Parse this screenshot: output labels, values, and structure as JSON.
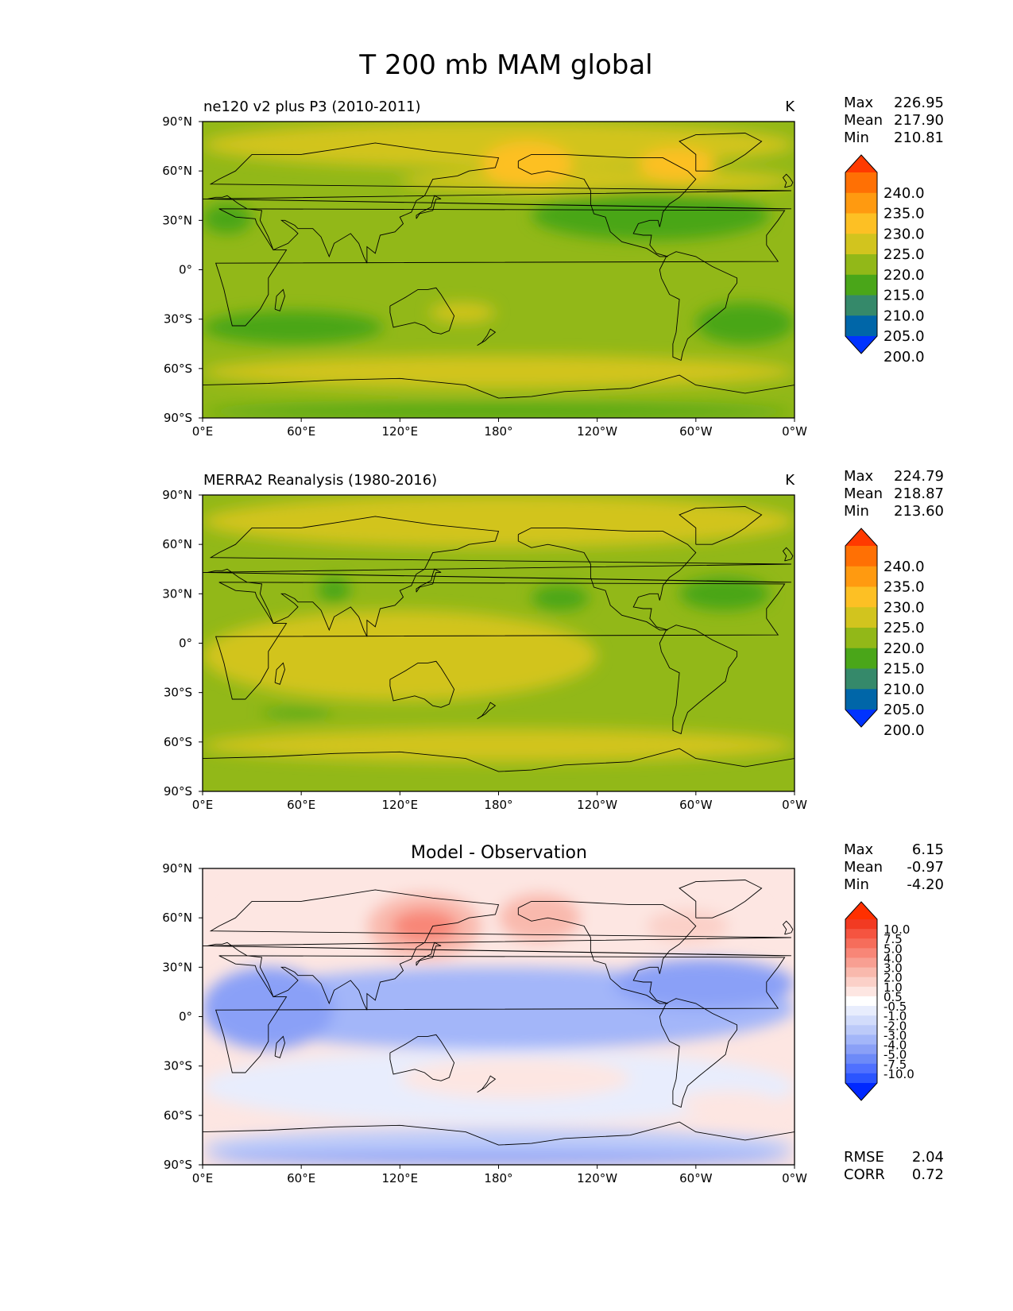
{
  "figure": {
    "title": "T 200 mb MAM global"
  },
  "colors": {
    "abs": [
      "#0033ff",
      "#0066a8",
      "#35896a",
      "#4aa619",
      "#92b818",
      "#d2c41e",
      "#fdc024",
      "#ff9a10",
      "#ff7004",
      "#ff3a00"
    ],
    "diff": [
      "#0028ff",
      "#2b55ff",
      "#4f70ff",
      "#6d8af8",
      "#8aa0f7",
      "#a3b6f9",
      "#bccaf9",
      "#d2dcfb",
      "#e8edfd",
      "#ffffff",
      "#fde6e2",
      "#fbd0c8",
      "#f9b9ad",
      "#f89f92",
      "#f88677",
      "#f66d5b",
      "#f55440",
      "#f23a22",
      "#ff3000"
    ],
    "land": "#000000"
  },
  "axes": {
    "xticks": [
      "0°E",
      "60°E",
      "120°E",
      "180°",
      "120°W",
      "60°W",
      "0°W"
    ],
    "yticks": [
      "90°N",
      "60°N",
      "30°N",
      "0°",
      "30°S",
      "60°S",
      "90°S"
    ]
  },
  "panels": [
    {
      "title_left": "ne120 v2 plus P3 (2010-2011)",
      "title_center": "",
      "units": "K",
      "stats": [
        {
          "label": "Max",
          "value": "226.95"
        },
        {
          "label": "Mean",
          "value": "217.90"
        },
        {
          "label": "Min",
          "value": "210.81"
        }
      ],
      "colorbar_labels": [
        "240.0",
        "235.0",
        "230.0",
        "225.0",
        "220.0",
        "215.0",
        "210.0",
        "205.0",
        "200.0"
      ],
      "extra_stats": []
    },
    {
      "title_left": "MERRA2 Reanalysis (1980-2016)",
      "title_center": "",
      "units": "K",
      "stats": [
        {
          "label": "Max",
          "value": "224.79"
        },
        {
          "label": "Mean",
          "value": "218.87"
        },
        {
          "label": "Min",
          "value": "213.60"
        }
      ],
      "colorbar_labels": [
        "240.0",
        "235.0",
        "230.0",
        "225.0",
        "220.0",
        "215.0",
        "210.0",
        "205.0",
        "200.0"
      ],
      "extra_stats": []
    },
    {
      "title_left": "",
      "title_center": "Model - Observation",
      "units": "",
      "stats": [
        {
          "label": "Max",
          "value": "6.15"
        },
        {
          "label": "Mean",
          "value": "-0.97"
        },
        {
          "label": "Min",
          "value": "-4.20"
        }
      ],
      "colorbar_labels": [
        "10.0",
        "7.5",
        "5.0",
        "4.0",
        "3.0",
        "2.0",
        "1.0",
        "0.5",
        "-0.5",
        "-1.0",
        "-2.0",
        "-3.0",
        "-4.0",
        "-5.0",
        "-7.5",
        "-10.0"
      ],
      "extra_stats": [
        {
          "label": "RMSE",
          "value": "2.04"
        },
        {
          "label": "CORR",
          "value": "0.72"
        }
      ]
    }
  ],
  "chart_data": [
    {
      "type": "heatmap",
      "title": "ne120 v2 plus P3 (2010-2011)",
      "variable": "T 200 mb MAM global",
      "units": "K",
      "x_range_lon": [
        0,
        360
      ],
      "y_range_lat": [
        -90,
        90
      ],
      "xlabel": "",
      "ylabel": "",
      "max": 226.95,
      "mean": 217.9,
      "min": 210.81,
      "contour_levels": [
        200,
        205,
        210,
        215,
        220,
        225,
        230,
        235,
        240
      ],
      "regions": [
        {
          "lon": [
            0,
            360
          ],
          "lat": [
            -90,
            90
          ],
          "value": 217.5
        },
        {
          "lon": [
            0,
            360
          ],
          "lat": [
            62,
            90
          ],
          "value": 222.5
        },
        {
          "lon": [
            120,
            360
          ],
          "lat": [
            46,
            62
          ],
          "value": 222.5
        },
        {
          "lon": [
            170,
            225
          ],
          "lat": [
            50,
            78
          ],
          "value": 226
        },
        {
          "lon": [
            265,
            312
          ],
          "lat": [
            54,
            74
          ],
          "value": 225.5
        },
        {
          "lon": [
            0,
            360
          ],
          "lat": [
            -72,
            -52
          ],
          "value": 222.5
        },
        {
          "lon": [
            0,
            110
          ],
          "lat": [
            -45,
            -25
          ],
          "value": 213.5
        },
        {
          "lon": [
            300,
            360
          ],
          "lat": [
            -45,
            -20
          ],
          "value": 213.5
        },
        {
          "lon": [
            0,
            360
          ],
          "lat": [
            -90,
            -82
          ],
          "value": 213.5
        },
        {
          "lon": [
            200,
            345
          ],
          "lat": [
            18,
            48
          ],
          "value": 213.5
        },
        {
          "lon": [
            0,
            30
          ],
          "lat": [
            22,
            40
          ],
          "value": 213.5
        },
        {
          "lon": [
            138,
            178
          ],
          "lat": [
            -32,
            -20
          ],
          "value": 222.5
        }
      ]
    },
    {
      "type": "heatmap",
      "title": "MERRA2 Reanalysis (1980-2016)",
      "variable": "T 200 mb MAM global",
      "units": "K",
      "x_range_lon": [
        0,
        360
      ],
      "y_range_lat": [
        -90,
        90
      ],
      "xlabel": "",
      "ylabel": "",
      "max": 224.79,
      "mean": 218.87,
      "min": 213.6,
      "contour_levels": [
        200,
        205,
        210,
        215,
        220,
        225,
        230,
        235,
        240
      ],
      "regions": [
        {
          "lon": [
            0,
            360
          ],
          "lat": [
            -90,
            90
          ],
          "value": 217.5
        },
        {
          "lon": [
            0,
            360
          ],
          "lat": [
            58,
            90
          ],
          "value": 222.5
        },
        {
          "lon": [
            0,
            240
          ],
          "lat": [
            -35,
            20
          ],
          "value": 222.5
        },
        {
          "lon": [
            0,
            360
          ],
          "lat": [
            -72,
            -52
          ],
          "value": 222.5
        },
        {
          "lon": [
            70,
            90
          ],
          "lat": [
            25,
            40
          ],
          "value": 213.5
        },
        {
          "lon": [
            200,
            235
          ],
          "lat": [
            20,
            35
          ],
          "value": 213.5
        },
        {
          "lon": [
            290,
            345
          ],
          "lat": [
            20,
            40
          ],
          "value": 213.5
        },
        {
          "lon": [
            35,
            80
          ],
          "lat": [
            -45,
            -40
          ],
          "value": 213.5
        }
      ]
    },
    {
      "type": "heatmap",
      "title": "Model - Observation",
      "variable": "T 200 mb MAM global",
      "units": "K",
      "x_range_lon": [
        0,
        360
      ],
      "y_range_lat": [
        -90,
        90
      ],
      "xlabel": "",
      "ylabel": "",
      "max": 6.15,
      "mean": -0.97,
      "min": -4.2,
      "rmse": 2.04,
      "corr": 0.72,
      "contour_levels": [
        -10,
        -7.5,
        -5,
        -4,
        -3,
        -2,
        -1,
        -0.5,
        0.5,
        1,
        2,
        3,
        4,
        5,
        7.5,
        10
      ],
      "regions": [
        {
          "lon": [
            0,
            360
          ],
          "lat": [
            35,
            62
          ],
          "value": 1.5
        },
        {
          "lon": [
            15,
            340
          ],
          "lat": [
            40,
            85
          ],
          "value": 1.5
        },
        {
          "lon": [
            100,
            170
          ],
          "lat": [
            35,
            75
          ],
          "value": 3
        },
        {
          "lon": [
            115,
            155
          ],
          "lat": [
            45,
            65
          ],
          "value": 5
        },
        {
          "lon": [
            180,
            230
          ],
          "lat": [
            45,
            75
          ],
          "value": 3
        },
        {
          "lon": [
            270,
            320
          ],
          "lat": [
            45,
            65
          ],
          "value": 2.5
        },
        {
          "lon": [
            0,
            360
          ],
          "lat": [
            -20,
            30
          ],
          "value": -2.5
        },
        {
          "lon": [
            0,
            80
          ],
          "lat": [
            -20,
            30
          ],
          "value": -3.5
        },
        {
          "lon": [
            250,
            360
          ],
          "lat": [
            5,
            35
          ],
          "value": -3.5
        },
        {
          "lon": [
            0,
            360
          ],
          "lat": [
            -65,
            -20
          ],
          "value": 0
        },
        {
          "lon": [
            120,
            260
          ],
          "lat": [
            -50,
            -25
          ],
          "value": 1.5
        },
        {
          "lon": [
            290,
            350
          ],
          "lat": [
            -60,
            -45
          ],
          "value": 1.5
        },
        {
          "lon": [
            0,
            360
          ],
          "lat": [
            -90,
            -68
          ],
          "value": -2
        },
        {
          "lon": [
            0,
            360
          ],
          "lat": [
            -90,
            -82
          ],
          "value": -3.5
        }
      ]
    }
  ]
}
